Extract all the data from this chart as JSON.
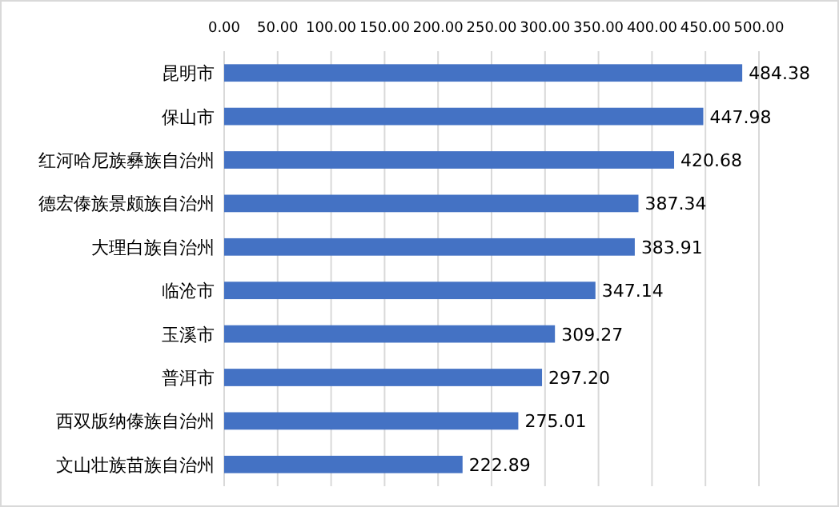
{
  "chart_data": {
    "type": "bar",
    "orientation": "horizontal",
    "categories": [
      "昆明市",
      "保山市",
      "红河哈尼族彝族自治州",
      "德宏傣族景颇族自治州",
      "大理白族自治州",
      "临沧市",
      "玉溪市",
      "普洱市",
      "西双版纳傣族自治州",
      "文山壮族苗族自治州"
    ],
    "values": [
      484.38,
      447.98,
      420.68,
      387.34,
      383.91,
      347.14,
      309.27,
      297.2,
      275.01,
      222.89
    ],
    "value_labels": [
      "484.38",
      "447.98",
      "420.68",
      "387.34",
      "383.91",
      "347.14",
      "309.27",
      "297.20",
      "275.01",
      "222.89"
    ],
    "color": "#4472c4",
    "xlim": [
      0,
      500
    ],
    "xticks": [
      {
        "value": 0,
        "label": "0.00"
      },
      {
        "value": 50,
        "label": "50.00"
      },
      {
        "value": 100,
        "label": "100.00"
      },
      {
        "value": 150,
        "label": "150.00"
      },
      {
        "value": 200,
        "label": "200.00"
      },
      {
        "value": 250,
        "label": "250.00"
      },
      {
        "value": 300,
        "label": "300.00"
      },
      {
        "value": 350,
        "label": "350.00"
      },
      {
        "value": 400,
        "label": "400.00"
      },
      {
        "value": 450,
        "label": "450.00"
      },
      {
        "value": 500,
        "label": "500.00"
      }
    ],
    "grid": "x"
  }
}
